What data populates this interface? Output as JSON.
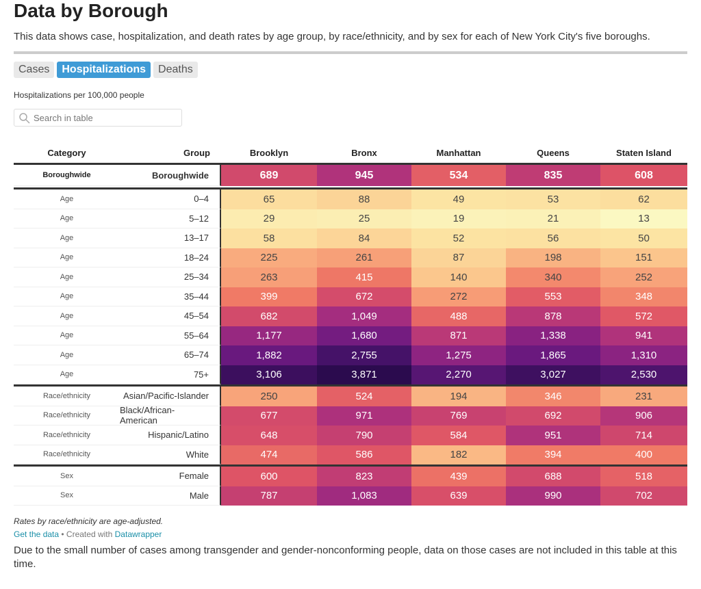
{
  "header": {
    "title": "Data by Borough",
    "description": "This data shows case, hospitalization, and death rates by age group, by race/ethnicity, and by sex for each of New York City's five boroughs."
  },
  "tabs": {
    "items": [
      "Cases",
      "Hospitalizations",
      "Deaths"
    ],
    "active": 1
  },
  "subtitle": "Hospitalizations per 100,000 people",
  "search": {
    "placeholder": "Search in table"
  },
  "table": {
    "columns": [
      "Category",
      "Group",
      "Brooklyn",
      "Bronx",
      "Manhattan",
      "Queens",
      "Staten Island"
    ],
    "rows": [
      [
        "Boroughwide",
        "Boroughwide",
        "689",
        "945",
        "534",
        "835",
        "608"
      ],
      [
        "Age",
        "0–4",
        "65",
        "88",
        "49",
        "53",
        "62"
      ],
      [
        "Age",
        "5–12",
        "29",
        "25",
        "19",
        "21",
        "13"
      ],
      [
        "Age",
        "13–17",
        "58",
        "84",
        "52",
        "56",
        "50"
      ],
      [
        "Age",
        "18–24",
        "225",
        "261",
        "87",
        "198",
        "151"
      ],
      [
        "Age",
        "25–34",
        "263",
        "415",
        "140",
        "340",
        "252"
      ],
      [
        "Age",
        "35–44",
        "399",
        "672",
        "272",
        "553",
        "348"
      ],
      [
        "Age",
        "45–54",
        "682",
        "1,049",
        "488",
        "878",
        "572"
      ],
      [
        "Age",
        "55–64",
        "1,177",
        "1,680",
        "871",
        "1,338",
        "941"
      ],
      [
        "Age",
        "65–74",
        "1,882",
        "2,755",
        "1,275",
        "1,865",
        "1,310"
      ],
      [
        "Age",
        "75+",
        "3,106",
        "3,871",
        "2,270",
        "3,027",
        "2,530"
      ],
      [
        "Race/ethnicity",
        "Asian/Pacific-Islander",
        "250",
        "524",
        "194",
        "346",
        "231"
      ],
      [
        "Race/ethnicity",
        "Black/African-American",
        "677",
        "971",
        "769",
        "692",
        "906"
      ],
      [
        "Race/ethnicity",
        "Hispanic/Latino",
        "648",
        "790",
        "584",
        "951",
        "714"
      ],
      [
        "Race/ethnicity",
        "White",
        "474",
        "586",
        "182",
        "394",
        "400"
      ],
      [
        "Sex",
        "Female",
        "600",
        "823",
        "439",
        "688",
        "518"
      ],
      [
        "Sex",
        "Male",
        "787",
        "1,083",
        "639",
        "990",
        "702"
      ]
    ]
  },
  "footer": {
    "note": "Rates by race/ethnicity are age-adjusted.",
    "get_data": "Get the data",
    "created": "• Created with",
    "datawrapper": "Datawrapper",
    "footnote": "Due to the small number of cases among transgender and gender-nonconforming people, data on those cases are not included in this table at this time."
  }
}
